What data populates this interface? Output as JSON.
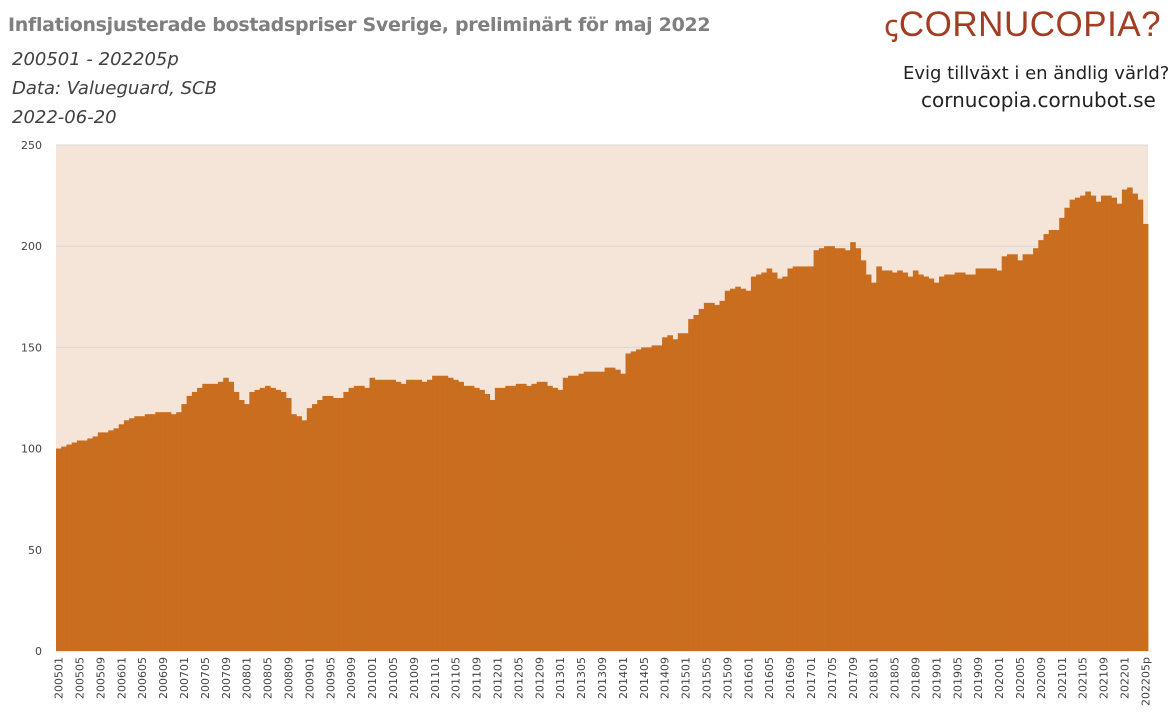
{
  "header": {
    "title": "Inflationsjusterade bostadspriser Sverige, preliminärt för maj 2022",
    "period": "200501 - 202205p",
    "source": "Data: Valueguard, SCB",
    "date": "2022-06-20"
  },
  "branding": {
    "logo_text": "CORNUCOPIA?",
    "tagline": "Evig tillväxt i en ändlig värld?",
    "url": "cornucopia.cornubot.se"
  },
  "colors": {
    "bar": "#c96d1f",
    "plot_bg": "#f5e4d8",
    "grid": "#d9d9d9",
    "logo": "#a23d22"
  },
  "chart_data": {
    "type": "bar",
    "title": "Inflationsjusterade bostadspriser Sverige, preliminärt för maj 2022",
    "xlabel": "",
    "ylabel": "",
    "ylim": [
      0,
      250
    ],
    "y_ticks": [
      0,
      50,
      100,
      150,
      200,
      250
    ],
    "grid": true,
    "x_start": "200501",
    "x_end": "202205p",
    "x_tick_labels": [
      "200501",
      "200505",
      "200509",
      "200601",
      "200605",
      "200609",
      "200701",
      "200705",
      "200709",
      "200801",
      "200805",
      "200809",
      "200901",
      "200905",
      "200909",
      "201001",
      "201005",
      "201009",
      "201101",
      "201105",
      "201109",
      "201201",
      "201205",
      "201209",
      "201301",
      "201305",
      "201309",
      "201401",
      "201405",
      "201409",
      "201501",
      "201505",
      "201509",
      "201601",
      "201605",
      "201609",
      "201701",
      "201705",
      "201709",
      "201801",
      "201805",
      "201809",
      "201901",
      "201905",
      "201909",
      "202001",
      "202005",
      "202009",
      "202101",
      "202105",
      "202109",
      "202201",
      "202205p"
    ],
    "values": [
      100,
      101,
      102,
      103,
      104,
      104,
      105,
      106,
      108,
      108,
      109,
      110,
      112,
      114,
      115,
      116,
      116,
      117,
      117,
      118,
      118,
      118,
      117,
      118,
      122,
      126,
      128,
      130,
      132,
      132,
      132,
      133,
      135,
      133,
      128,
      124,
      122,
      128,
      129,
      130,
      131,
      130,
      129,
      128,
      125,
      117,
      116,
      114,
      120,
      122,
      124,
      126,
      126,
      125,
      125,
      128,
      130,
      131,
      131,
      130,
      135,
      134,
      134,
      134,
      134,
      133,
      132,
      134,
      134,
      134,
      133,
      134,
      136,
      136,
      136,
      135,
      134,
      133,
      131,
      131,
      130,
      129,
      127,
      124,
      130,
      130,
      131,
      131,
      132,
      132,
      131,
      132,
      133,
      133,
      131,
      130,
      129,
      135,
      136,
      136,
      137,
      138,
      138,
      138,
      138,
      140,
      140,
      139,
      137,
      147,
      148,
      149,
      150,
      150,
      151,
      151,
      155,
      156,
      154,
      157,
      157,
      164,
      166,
      169,
      172,
      172,
      171,
      173,
      178,
      179,
      180,
      179,
      178,
      185,
      186,
      187,
      189,
      187,
      184,
      185,
      189,
      190,
      190,
      190,
      190,
      198,
      199,
      200,
      200,
      199,
      199,
      198,
      202,
      199,
      193,
      186,
      182,
      190,
      188,
      188,
      187,
      188,
      187,
      185,
      188,
      186,
      185,
      184,
      182,
      185,
      186,
      186,
      187,
      187,
      186,
      186,
      189,
      189,
      189,
      189,
      188,
      195,
      196,
      196,
      193,
      196,
      196,
      199,
      203,
      206,
      208,
      208,
      214,
      219,
      223,
      224,
      225,
      227,
      225,
      222,
      225,
      225,
      224,
      221,
      228,
      229,
      226,
      223,
      211
    ]
  }
}
